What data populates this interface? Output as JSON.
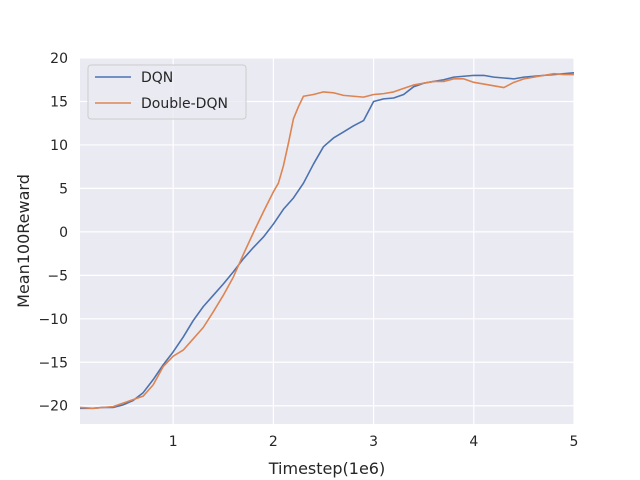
{
  "chart_data": {
    "type": "line",
    "title": "",
    "xlabel": "Timestep(1e6)",
    "ylabel": "Mean100Reward",
    "xlim": [
      0.07,
      5.0
    ],
    "ylim": [
      -22.1,
      20.0
    ],
    "xticks": [
      1,
      2,
      3,
      4,
      5
    ],
    "xtick_labels": [
      "1",
      "2",
      "3",
      "4",
      "5"
    ],
    "yticks": [
      -20,
      -15,
      -10,
      -5,
      0,
      5,
      10,
      15,
      20
    ],
    "ytick_labels": [
      "−20",
      "−15",
      "−10",
      "−5",
      "0",
      "5",
      "10",
      "15",
      "20"
    ],
    "grid": true,
    "legend_position": "top-left",
    "series": [
      {
        "name": "DQN",
        "color": "#4c72b0",
        "x": [
          0.07,
          0.2,
          0.3,
          0.4,
          0.5,
          0.6,
          0.7,
          0.8,
          0.9,
          1.0,
          1.1,
          1.2,
          1.3,
          1.4,
          1.5,
          1.6,
          1.7,
          1.8,
          1.9,
          2.0,
          2.1,
          2.2,
          2.3,
          2.4,
          2.5,
          2.6,
          2.7,
          2.8,
          2.9,
          3.0,
          3.1,
          3.2,
          3.3,
          3.4,
          3.5,
          3.6,
          3.7,
          3.8,
          3.9,
          4.0,
          4.1,
          4.2,
          4.3,
          4.4,
          4.5,
          4.6,
          4.7,
          4.8,
          4.9,
          5.0
        ],
        "y": [
          -20.3,
          -20.3,
          -20.2,
          -20.2,
          -19.9,
          -19.4,
          -18.5,
          -17.0,
          -15.3,
          -13.8,
          -12.1,
          -10.2,
          -8.6,
          -7.3,
          -6.0,
          -4.6,
          -3.1,
          -1.8,
          -0.6,
          0.9,
          2.6,
          3.9,
          5.6,
          7.8,
          9.8,
          10.8,
          11.5,
          12.2,
          12.8,
          15.0,
          15.3,
          15.4,
          15.8,
          16.7,
          17.1,
          17.3,
          17.5,
          17.8,
          17.9,
          18.0,
          18.0,
          17.8,
          17.7,
          17.6,
          17.8,
          17.9,
          18.0,
          18.1,
          18.2,
          18.3
        ]
      },
      {
        "name": "Double-DQN",
        "color": "#dd8452",
        "x": [
          0.07,
          0.2,
          0.3,
          0.4,
          0.5,
          0.6,
          0.7,
          0.8,
          0.9,
          1.0,
          1.1,
          1.2,
          1.3,
          1.4,
          1.5,
          1.6,
          1.7,
          1.8,
          1.9,
          2.0,
          2.05,
          2.1,
          2.15,
          2.2,
          2.25,
          2.3,
          2.4,
          2.5,
          2.6,
          2.7,
          2.8,
          2.9,
          3.0,
          3.1,
          3.2,
          3.3,
          3.4,
          3.5,
          3.6,
          3.7,
          3.8,
          3.9,
          4.0,
          4.1,
          4.2,
          4.3,
          4.4,
          4.5,
          4.6,
          4.7,
          4.8,
          4.9,
          5.0
        ],
        "y": [
          -20.2,
          -20.3,
          -20.2,
          -20.1,
          -19.7,
          -19.3,
          -18.9,
          -17.6,
          -15.5,
          -14.3,
          -13.6,
          -12.3,
          -11.0,
          -9.2,
          -7.3,
          -5.2,
          -2.6,
          -0.1,
          2.3,
          4.6,
          5.6,
          7.6,
          10.2,
          13.0,
          14.4,
          15.6,
          15.8,
          16.1,
          16.0,
          15.7,
          15.6,
          15.5,
          15.8,
          15.9,
          16.1,
          16.5,
          16.9,
          17.1,
          17.3,
          17.3,
          17.6,
          17.6,
          17.2,
          17.0,
          16.8,
          16.6,
          17.2,
          17.6,
          17.8,
          18.0,
          18.2,
          18.1,
          18.1
        ]
      }
    ]
  }
}
